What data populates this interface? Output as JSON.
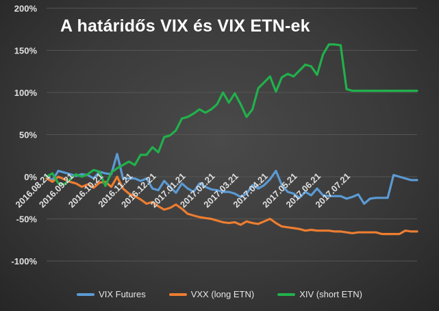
{
  "chart_data": {
    "type": "line",
    "title": "A határidős VIX és VIX ETN-ek",
    "xlabel": "",
    "ylabel": "",
    "ylim": [
      -100,
      200
    ],
    "y_tick_values": [
      -100,
      -50,
      0,
      50,
      100,
      150,
      200
    ],
    "y_tick_labels": [
      "-100%",
      "-50%",
      "0%",
      "50%",
      "100%",
      "150%",
      "200%"
    ],
    "x_tick_labels": [
      "2016.08.21",
      "2016.09.21",
      "2016.10.21",
      "2016.11.21",
      "2016.12.21",
      "2017.01.21",
      "2017.02.21",
      "2017.03.21",
      "2017.04.21",
      "2017.05.21",
      "2017.06.21",
      "2017.07.21"
    ],
    "x_tick_steps": [
      0,
      4,
      9,
      14,
      18,
      23,
      28,
      32,
      37,
      42,
      46,
      51
    ],
    "n_points": 64,
    "grid": true,
    "legend_position": "bottom",
    "series": [
      {
        "name": "VIX Futures",
        "color": "#5b9bd5",
        "values": [
          0,
          -4,
          7,
          5,
          3,
          1,
          3,
          2,
          -2,
          6,
          4,
          3,
          27,
          -2,
          -2,
          -2,
          -5,
          -2,
          -14,
          -16,
          -5,
          -12,
          -19,
          -8,
          -14,
          -18,
          -8,
          -12,
          -15,
          -16,
          -18,
          -18,
          -20,
          -24,
          -20,
          -10,
          -14,
          -10,
          -3,
          7,
          -10,
          -18,
          -20,
          -25,
          -18,
          -22,
          -14,
          -22,
          -23,
          -23,
          -23,
          -26,
          -24,
          -21,
          -32,
          -26,
          -25,
          -25,
          -25,
          2,
          0,
          -2,
          -4,
          -4
        ]
      },
      {
        "name": "VXX (long ETN)",
        "color": "#ed7d31",
        "values": [
          -2,
          -6,
          0,
          -3,
          -6,
          -8,
          -12,
          -9,
          -13,
          -7,
          -6,
          -12,
          0,
          -14,
          -20,
          -23,
          -27,
          -32,
          -30,
          -35,
          -39,
          -37,
          -33,
          -38,
          -44,
          -46,
          -48,
          -49,
          -50,
          -52,
          -54,
          -55,
          -54,
          -57,
          -53,
          -55,
          -56,
          -53,
          -50,
          -55,
          -59,
          -60,
          -61,
          -62,
          -64,
          -63,
          -64,
          -64,
          -64,
          -65,
          -65,
          -66,
          -67,
          -66,
          -66,
          -66,
          -66,
          -68,
          -68,
          -68,
          -68,
          -64,
          -65,
          -65
        ]
      },
      {
        "name": "XIV (short ETN)",
        "color": "#21b14b",
        "values": [
          0,
          4,
          -8,
          -9,
          -3,
          3,
          0,
          3,
          8,
          6,
          -11,
          5,
          10,
          14,
          18,
          14,
          26,
          26,
          35,
          29,
          47,
          49,
          55,
          69,
          71,
          75,
          80,
          76,
          80,
          86,
          100,
          88,
          99,
          86,
          71,
          80,
          105,
          112,
          119,
          101,
          118,
          122,
          119,
          126,
          133,
          131,
          121,
          145,
          157,
          157,
          156,
          104,
          102,
          102,
          102,
          102,
          102,
          102,
          102,
          102,
          102,
          102,
          102,
          102
        ]
      }
    ]
  }
}
